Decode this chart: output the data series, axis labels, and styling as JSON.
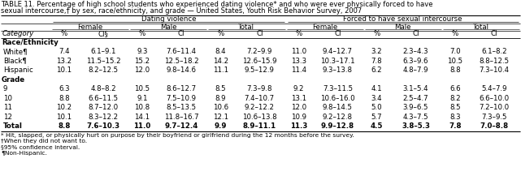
{
  "title_line1": "TABLE 11. Percentage of high school students who experienced dating violence* and who were ever physically forced to have",
  "title_line2": "sexual intercourse,† by sex, race/ethnicity, and grade — United States, Youth Risk Behavior Survey, 2007",
  "col_groups": [
    "Dating violence",
    "Forced to have sexual intercourse"
  ],
  "sub_cols": [
    "Female",
    "Male",
    "Total",
    "Female",
    "Male",
    "Total"
  ],
  "leaf_cols": [
    "%",
    "CI§",
    "%",
    "CI",
    "%",
    "CI",
    "%",
    "CI",
    "%",
    "CI",
    "%",
    "CI"
  ],
  "rows": [
    {
      "label": "Race/Ethnicity",
      "section": true,
      "bold": true,
      "vals": []
    },
    {
      "label": "White¶",
      "section": false,
      "bold": false,
      "vals": [
        "7.4",
        "6.1–9.1",
        "9.3",
        "7.6–11.4",
        "8.4",
        "7.2–9.9",
        "11.0",
        "9.4–12.7",
        "3.2",
        "2.3–4.3",
        "7.0",
        "6.1–8.2"
      ]
    },
    {
      "label": "Black¶",
      "section": false,
      "bold": false,
      "vals": [
        "13.2",
        "11.5–15.2",
        "15.2",
        "12.5–18.2",
        "14.2",
        "12.6–15.9",
        "13.3",
        "10.3–17.1",
        "7.8",
        "6.3–9.6",
        "10.5",
        "8.8–12.5"
      ]
    },
    {
      "label": "Hispanic",
      "section": false,
      "bold": false,
      "vals": [
        "10.1",
        "8.2–12.5",
        "12.0",
        "9.8–14.6",
        "11.1",
        "9.5–12.9",
        "11.4",
        "9.3–13.8",
        "6.2",
        "4.8–7.9",
        "8.8",
        "7.3–10.4"
      ]
    },
    {
      "label": "Grade",
      "section": true,
      "bold": true,
      "vals": []
    },
    {
      "label": "9",
      "section": false,
      "bold": false,
      "vals": [
        "6.3",
        "4.8–8.2",
        "10.5",
        "8.6–12.7",
        "8.5",
        "7.3–9.8",
        "9.2",
        "7.3–11.5",
        "4.1",
        "3.1–5.4",
        "6.6",
        "5.4–7.9"
      ]
    },
    {
      "label": "10",
      "section": false,
      "bold": false,
      "vals": [
        "8.8",
        "6.6–11.5",
        "9.1",
        "7.5–10.9",
        "8.9",
        "7.4–10.7",
        "13.1",
        "10.6–16.0",
        "3.4",
        "2.5–4.7",
        "8.2",
        "6.6–10.0"
      ]
    },
    {
      "label": "11",
      "section": false,
      "bold": false,
      "vals": [
        "10.2",
        "8.7–12.0",
        "10.8",
        "8.5–13.5",
        "10.6",
        "9.2–12.2",
        "12.0",
        "9.8–14.5",
        "5.0",
        "3.9–6.5",
        "8.5",
        "7.2–10.0"
      ]
    },
    {
      "label": "12",
      "section": false,
      "bold": false,
      "vals": [
        "10.1",
        "8.3–12.2",
        "14.1",
        "11.8–16.7",
        "12.1",
        "10.6–13.8",
        "10.9",
        "9.2–12.8",
        "5.7",
        "4.3–7.5",
        "8.3",
        "7.3–9.5"
      ]
    },
    {
      "label": "Total",
      "section": false,
      "bold": true,
      "vals": [
        "8.8",
        "7.6–10.3",
        "11.0",
        "9.7–12.4",
        "9.9",
        "8.9–11.1",
        "11.3",
        "9.9–12.8",
        "4.5",
        "3.8–5.3",
        "7.8",
        "7.0–8.8"
      ]
    }
  ],
  "footnotes": [
    "* Hit, slapped, or physically hurt on purpose by their boyfriend or girlfriend during the 12 months before the survey.",
    "†When they did not want to.",
    "§95% confidence interval.",
    "¶Non-Hispanic."
  ],
  "bg_color": "#FFFFFF",
  "title_fs": 6.0,
  "hdr_fs": 6.2,
  "data_fs": 6.2,
  "fn_fs": 5.4,
  "fig_w": 6.41,
  "fig_h": 2.38,
  "dpi": 100
}
